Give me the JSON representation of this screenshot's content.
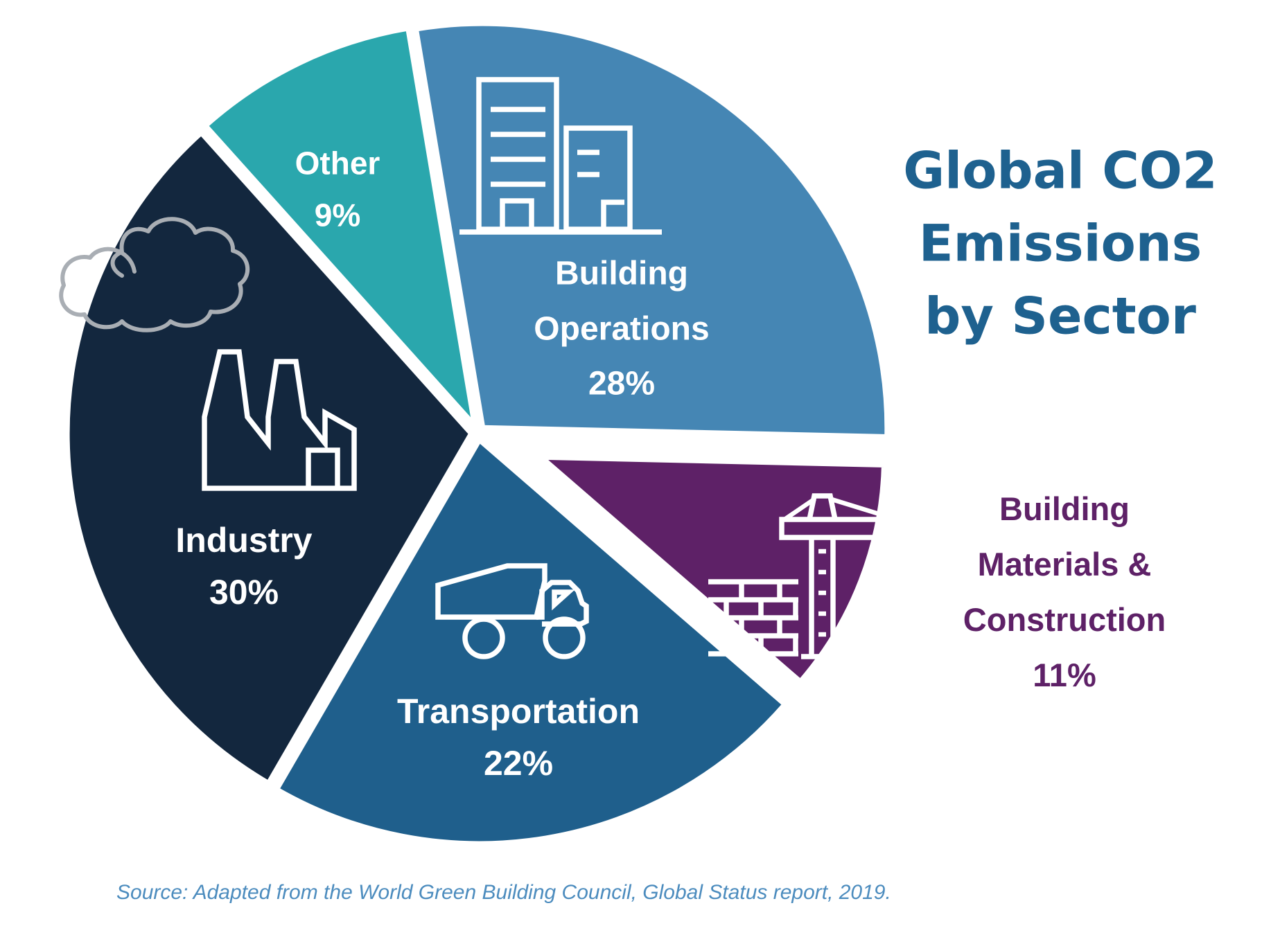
{
  "title": {
    "text": "Global CO2 Emissions by Sector",
    "lines": [
      "Global CO2",
      "Emissions",
      "by Sector"
    ],
    "color": "#1E618F"
  },
  "source": {
    "text": "Source: Adapted from the World Green Building Council, Global Status report, 2019."
  },
  "chart_data": {
    "type": "pie",
    "title": "Global CO2 Emissions by Sector",
    "unit": "percent",
    "direction": "clockwise",
    "start_angle_deg": -9.5,
    "legend": "none",
    "slices": [
      {
        "label": "Building Operations",
        "value": 28,
        "color": "#4586B4",
        "text_color": "#FFFFFF",
        "icon": "office-buildings-icon",
        "exploded": false,
        "label_lines": [
          "Building",
          "Operations",
          "28%"
        ]
      },
      {
        "label": "Building Materials & Construction",
        "value": 11,
        "color": "#5E2167",
        "text_color": "#5E2167",
        "icon": "construction-crane-icon",
        "exploded": true,
        "label_lines": [
          "Building",
          "Materials &",
          "Construction",
          "11%"
        ]
      },
      {
        "label": "Transportation",
        "value": 22,
        "color": "#1F5F8C",
        "text_color": "#FFFFFF",
        "icon": "dump-truck-icon",
        "exploded": false,
        "label_lines": [
          "Transportation",
          "22%"
        ]
      },
      {
        "label": "Industry",
        "value": 30,
        "color": "#13273E",
        "text_color": "#FFFFFF",
        "icon": "factory-icon",
        "exploded": false,
        "label_lines": [
          "Industry",
          "30%"
        ]
      },
      {
        "label": "Other",
        "value": 9,
        "color": "#2AA7AD",
        "text_color": "#FFFFFF",
        "icon": null,
        "exploded": false,
        "label_lines": [
          "Other",
          "9%"
        ]
      }
    ],
    "source_note": "Source: Adapted from the World Green Building Council, Global Status report, 2019."
  }
}
